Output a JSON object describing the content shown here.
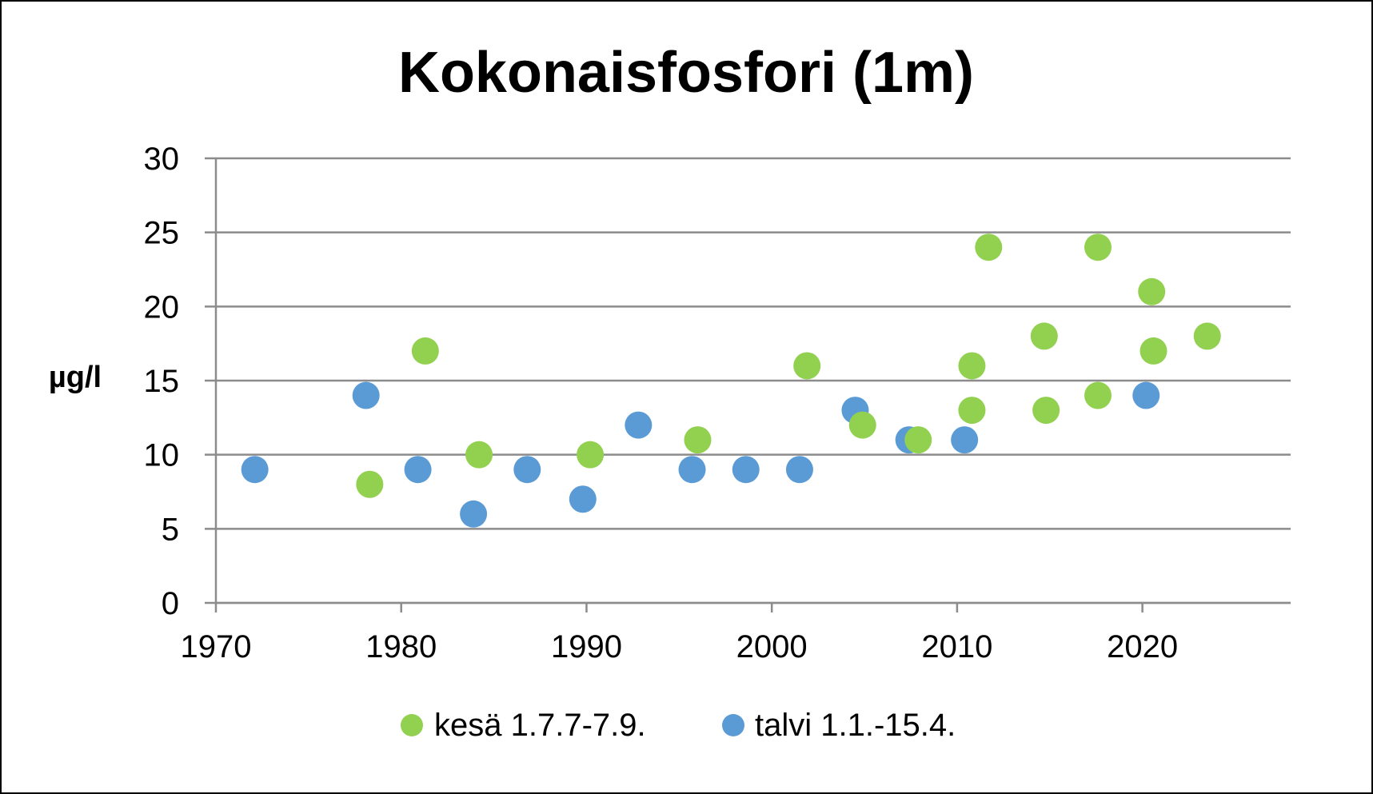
{
  "chart_data": {
    "type": "scatter",
    "title": "Kokonaisfosfori (1m)",
    "xlabel": "",
    "ylabel": "µg/l",
    "xlim": [
      1970,
      2028
    ],
    "ylim": [
      0,
      30
    ],
    "x_ticks": [
      1970,
      1980,
      1990,
      2000,
      2010,
      2020
    ],
    "y_ticks": [
      0,
      5,
      10,
      15,
      20,
      25,
      30
    ],
    "grid": "horizontal",
    "legend_position": "bottom",
    "series": [
      {
        "name": "kesä 1.7.7-7.9.",
        "color": "#92d050",
        "points": [
          {
            "x": 1978.3,
            "y": 8
          },
          {
            "x": 1981.3,
            "y": 17
          },
          {
            "x": 1984.2,
            "y": 10
          },
          {
            "x": 1990.2,
            "y": 10
          },
          {
            "x": 1996.0,
            "y": 11
          },
          {
            "x": 2001.9,
            "y": 16
          },
          {
            "x": 2004.9,
            "y": 12
          },
          {
            "x": 2007.9,
            "y": 11
          },
          {
            "x": 2010.8,
            "y": 16
          },
          {
            "x": 2010.8,
            "y": 13
          },
          {
            "x": 2011.7,
            "y": 24
          },
          {
            "x": 2014.7,
            "y": 18
          },
          {
            "x": 2014.8,
            "y": 13
          },
          {
            "x": 2017.6,
            "y": 24
          },
          {
            "x": 2017.6,
            "y": 14
          },
          {
            "x": 2020.5,
            "y": 21
          },
          {
            "x": 2020.6,
            "y": 17
          },
          {
            "x": 2023.5,
            "y": 18
          }
        ]
      },
      {
        "name": "talvi 1.1.-15.4.",
        "color": "#5b9bd5",
        "points": [
          {
            "x": 1972.1,
            "y": 9
          },
          {
            "x": 1978.1,
            "y": 14
          },
          {
            "x": 1980.9,
            "y": 9
          },
          {
            "x": 1983.9,
            "y": 6
          },
          {
            "x": 1986.8,
            "y": 9
          },
          {
            "x": 1989.8,
            "y": 7
          },
          {
            "x": 1992.8,
            "y": 12
          },
          {
            "x": 1995.7,
            "y": 9
          },
          {
            "x": 1998.6,
            "y": 9
          },
          {
            "x": 2001.5,
            "y": 9
          },
          {
            "x": 2004.5,
            "y": 13
          },
          {
            "x": 2007.4,
            "y": 11
          },
          {
            "x": 2010.4,
            "y": 11
          },
          {
            "x": 2020.2,
            "y": 14
          }
        ]
      }
    ]
  }
}
